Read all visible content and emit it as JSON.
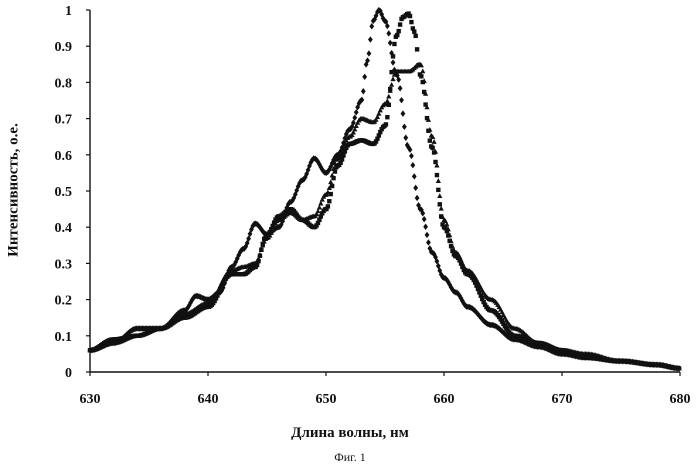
{
  "chart_data": {
    "type": "scatter",
    "title": "",
    "xlabel": "Длина волны, нм",
    "ylabel": "Интенсивность, о.е.",
    "caption": "Фиг. 1",
    "xlim": [
      630,
      680
    ],
    "ylim": [
      0,
      1
    ],
    "xticks": [
      630,
      640,
      650,
      660,
      670,
      680
    ],
    "xtick_labels": [
      "630",
      "640",
      "650",
      "660",
      "670",
      "680"
    ],
    "yticks": [
      0,
      0.1,
      0.2,
      0.3,
      0.4,
      0.5,
      0.6,
      0.7,
      0.8,
      0.9,
      1
    ],
    "ytick_labels": [
      "0",
      "0.1",
      "0.2",
      "0.3",
      "0.4",
      "0.5",
      "0.6",
      "0.7",
      "0.8",
      "0.9",
      "1"
    ],
    "grid": false,
    "legend": "none",
    "series": [
      {
        "marker": "diamond",
        "color": "#111111",
        "x": [
          630,
          632,
          634,
          636,
          638,
          639,
          640,
          641,
          642,
          643,
          644,
          645,
          646,
          647,
          648,
          649,
          650,
          651,
          652,
          653,
          653.5,
          654,
          654.5,
          655,
          656,
          657,
          658,
          659,
          660,
          661,
          662,
          664,
          666,
          668,
          670,
          672,
          675,
          678,
          680
        ],
        "y": [
          0.06,
          0.08,
          0.12,
          0.12,
          0.17,
          0.21,
          0.2,
          0.22,
          0.29,
          0.34,
          0.41,
          0.38,
          0.4,
          0.47,
          0.53,
          0.59,
          0.55,
          0.6,
          0.67,
          0.75,
          0.86,
          0.97,
          1.0,
          0.97,
          0.82,
          0.62,
          0.45,
          0.33,
          0.26,
          0.22,
          0.18,
          0.13,
          0.09,
          0.07,
          0.05,
          0.04,
          0.03,
          0.02,
          0.01
        ]
      },
      {
        "marker": "square",
        "color": "#111111",
        "x": [
          630,
          632,
          634,
          636,
          638,
          640,
          642,
          643,
          644,
          645,
          646,
          647,
          648,
          649,
          650,
          651,
          652,
          653,
          654,
          655,
          656,
          656.5,
          657,
          657.5,
          658,
          659,
          660,
          661,
          662,
          664,
          666,
          668,
          670,
          672,
          675,
          678,
          680
        ],
        "y": [
          0.06,
          0.09,
          0.1,
          0.12,
          0.15,
          0.18,
          0.27,
          0.27,
          0.29,
          0.38,
          0.43,
          0.45,
          0.42,
          0.4,
          0.45,
          0.57,
          0.63,
          0.64,
          0.63,
          0.68,
          0.93,
          0.98,
          0.99,
          0.94,
          0.82,
          0.62,
          0.4,
          0.32,
          0.27,
          0.17,
          0.1,
          0.08,
          0.06,
          0.04,
          0.03,
          0.02,
          0.01
        ]
      },
      {
        "marker": "triangle",
        "color": "#111111",
        "x": [
          630,
          632,
          634,
          636,
          638,
          640,
          642,
          643,
          644,
          645,
          646,
          647,
          648,
          649,
          650,
          651,
          652,
          653,
          654,
          655,
          656,
          657,
          658,
          659,
          660,
          661,
          662,
          664,
          666,
          668,
          670,
          672,
          675,
          678,
          680
        ],
        "y": [
          0.06,
          0.08,
          0.1,
          0.12,
          0.16,
          0.19,
          0.28,
          0.29,
          0.3,
          0.37,
          0.42,
          0.44,
          0.42,
          0.43,
          0.49,
          0.59,
          0.65,
          0.7,
          0.69,
          0.74,
          0.83,
          0.83,
          0.85,
          0.65,
          0.42,
          0.33,
          0.28,
          0.2,
          0.12,
          0.08,
          0.06,
          0.05,
          0.03,
          0.02,
          0.01
        ]
      }
    ]
  }
}
